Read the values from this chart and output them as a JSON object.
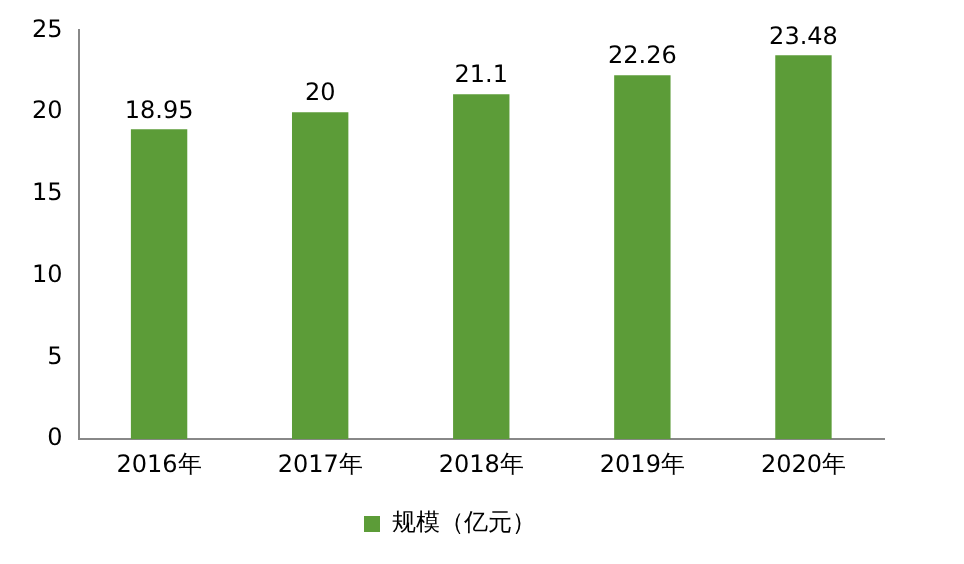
{
  "chart_data": {
    "type": "bar",
    "categories": [
      "2016年",
      "2017年",
      "2018年",
      "2019年",
      "2020年"
    ],
    "series": [
      {
        "name": "规模（亿元）",
        "color": "#5c9c38",
        "values": [
          18.95,
          20,
          21.1,
          22.26,
          23.48
        ]
      }
    ],
    "ylim": [
      0,
      25
    ],
    "yticks": [
      0,
      5,
      10,
      15,
      20,
      25
    ],
    "grid": false,
    "legend": "bottom",
    "data_labels": true
  }
}
